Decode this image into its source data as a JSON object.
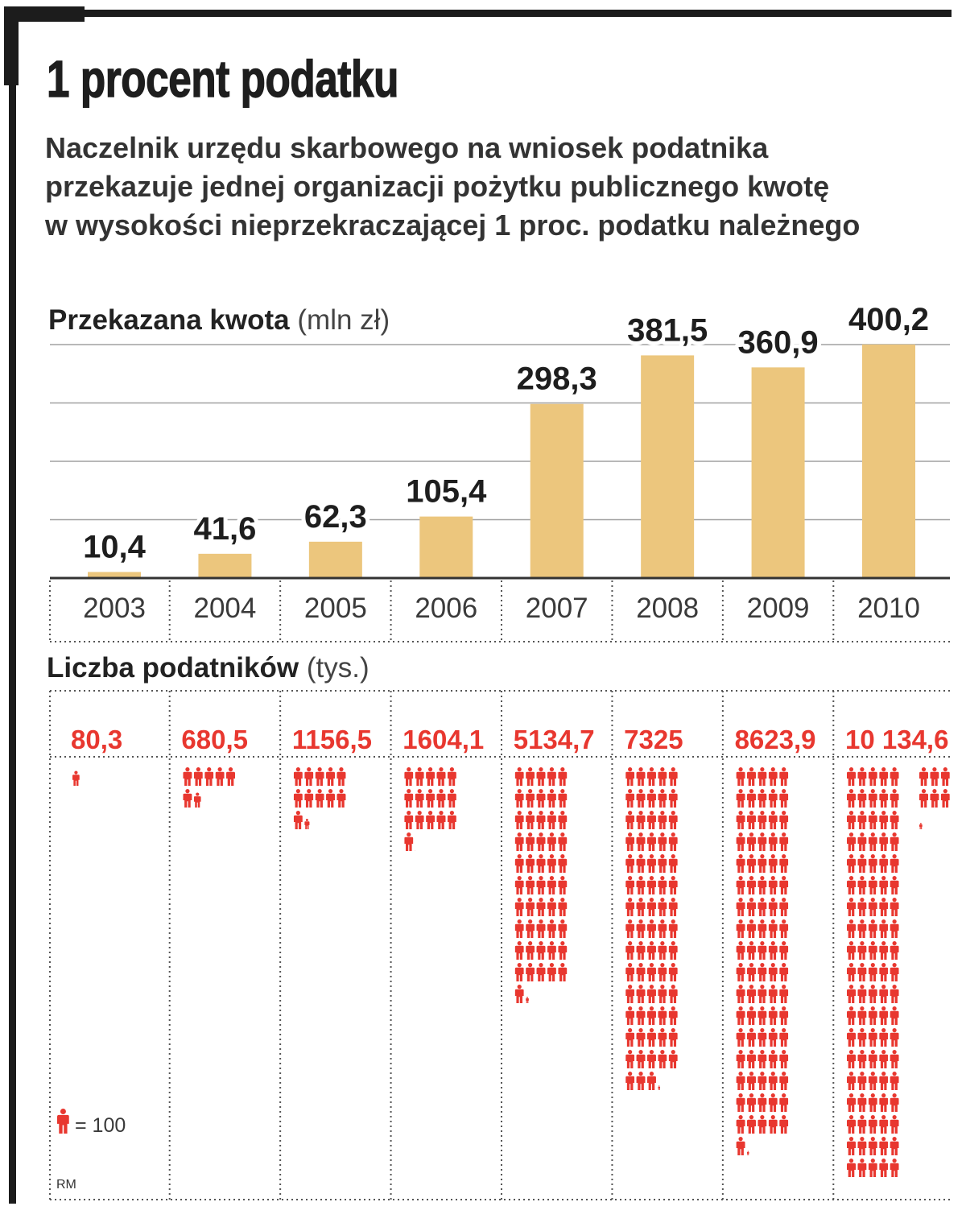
{
  "header": {
    "title": "1 procent podatku",
    "subtitle": [
      "Naczelnik urzędu skarbowego na wniosek podatnika",
      "przekazuje jednej organizacji pożytku publicznego kwotę",
      "w wysokości nieprzekraczającej 1 proc. podatku należnego"
    ]
  },
  "chart_data": {
    "type": "bar",
    "categories": [
      "2003",
      "2004",
      "2005",
      "2006",
      "2007",
      "2008",
      "2009",
      "2010"
    ],
    "series": [
      {
        "name": "Przekazana kwota",
        "unit": "(mln zł)",
        "values": [
          10.4,
          41.6,
          62.3,
          105.4,
          298.3,
          381.5,
          360.9,
          400.2
        ],
        "value_labels": [
          "10,4",
          "41,6",
          "62,3",
          "105,4",
          "298,3",
          "381,5",
          "360,9",
          "400,2"
        ],
        "ylim": [
          0,
          400
        ],
        "grid": true
      },
      {
        "name": "Liczba podatników",
        "unit": "(tys.)",
        "values": [
          80.3,
          680.5,
          1156.5,
          1604.1,
          5134.7,
          7325,
          8623.9,
          10134.6
        ],
        "value_labels": [
          "80,3",
          "680,5",
          "1156,5",
          "1604,1",
          "5134,7",
          "7325",
          "8623,9",
          "10 134,6"
        ],
        "icon": "person-icon",
        "icon_value": 100,
        "legend": "= 100"
      }
    ]
  },
  "credit": "RM",
  "colors": {
    "bar": "#ecc67d",
    "accent": "#e8372f",
    "frame": "#1c1c1c",
    "text": "#2b2b2b",
    "grid": "#a0a0a0"
  }
}
